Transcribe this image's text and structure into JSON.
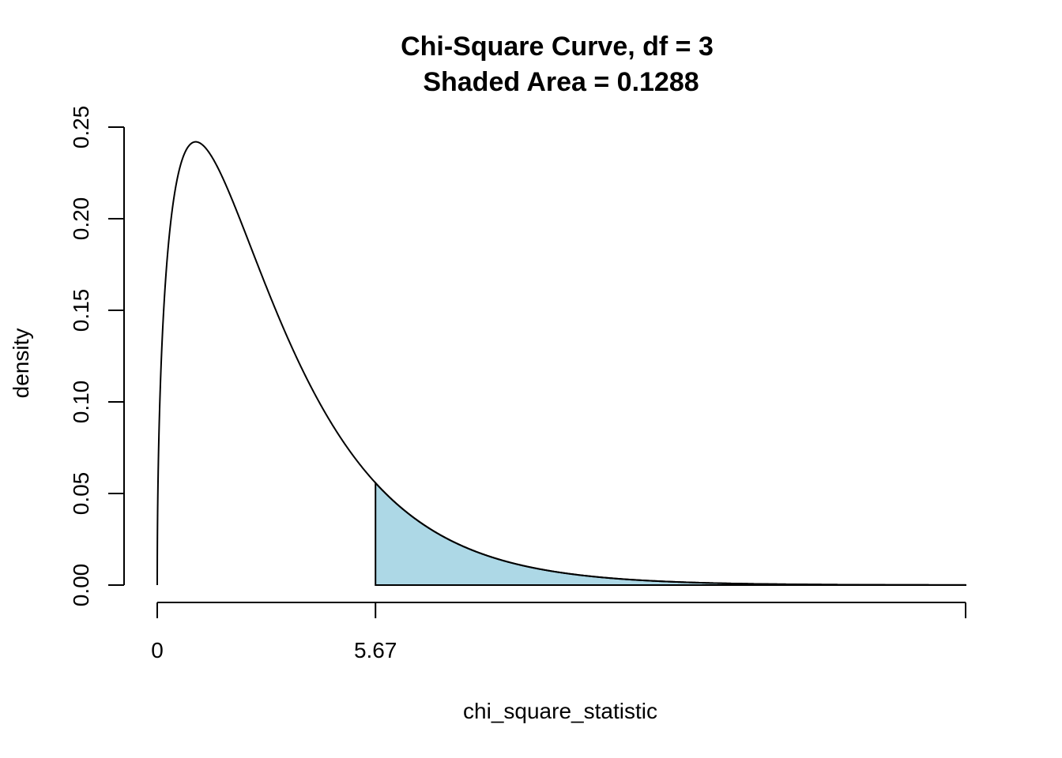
{
  "chart_data": {
    "type": "line",
    "title": "Chi-Square Curve, df =  3",
    "subtitle": "Shaded Area =  0.1288",
    "xlabel": "chi_square_statistic",
    "ylabel": "density",
    "df": 3,
    "critical_value": 5.67,
    "shaded_area": 0.1288,
    "xlim": [
      0,
      21
    ],
    "ylim": [
      0,
      0.25
    ],
    "x_ticks": [
      {
        "value": 0,
        "label": "0"
      },
      {
        "value": 5.67,
        "label": "5.67"
      },
      {
        "value": 21,
        "label": ""
      }
    ],
    "y_ticks": [
      {
        "value": 0,
        "label": "0.00"
      },
      {
        "value": 0.05,
        "label": "0.05"
      },
      {
        "value": 0.1,
        "label": "0.10"
      },
      {
        "value": 0.15,
        "label": "0.15"
      },
      {
        "value": 0.2,
        "label": "0.20"
      },
      {
        "value": 0.25,
        "label": "0.25"
      }
    ],
    "shade_color": "#ADD8E6",
    "line_color": "#000000",
    "grid": false,
    "legend": "none"
  }
}
